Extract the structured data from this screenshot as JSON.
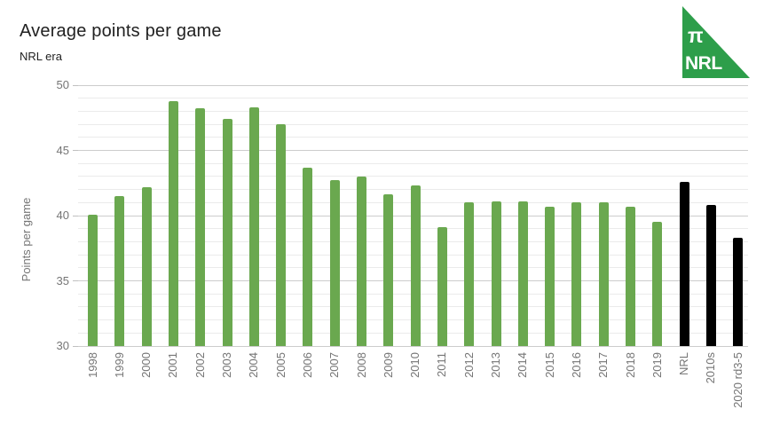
{
  "header": {
    "title": "Average points per game",
    "subtitle": "NRL era"
  },
  "logo": {
    "symbol": "π",
    "text": "NRL",
    "color": "#2d9e4a",
    "text_color": "#ffffff"
  },
  "chart_data": {
    "type": "bar",
    "title": "Average points per game",
    "subtitle": "NRL era",
    "xlabel": "",
    "ylabel": "Points per game",
    "ylim": [
      30,
      50
    ],
    "yticks": [
      30,
      35,
      40,
      45,
      50
    ],
    "major_tick_step": 5,
    "minor_tick_step": 1,
    "grid": true,
    "legend": "none",
    "categories": [
      "1998",
      "1999",
      "2000",
      "2001",
      "2002",
      "2003",
      "2004",
      "2005",
      "2006",
      "2007",
      "2008",
      "2009",
      "2010",
      "2011",
      "2012",
      "2013",
      "2014",
      "2015",
      "2016",
      "2017",
      "2018",
      "2019",
      "NRL",
      "2010s",
      "2020 rd3-5"
    ],
    "values": [
      40.1,
      41.5,
      42.2,
      48.8,
      48.2,
      47.4,
      48.3,
      47.0,
      43.7,
      42.7,
      43.0,
      41.6,
      42.3,
      39.1,
      41.0,
      41.1,
      41.1,
      40.7,
      41.0,
      41.0,
      40.7,
      39.5,
      42.6,
      40.8,
      38.3
    ],
    "bar_color_default": "#6aa84f",
    "bar_color_summary": "#000000",
    "summary_categories": [
      "NRL",
      "2010s",
      "2020 rd3-5"
    ],
    "gridline_color_minor": "#ebebeb",
    "gridline_color_major": "#cccccc",
    "axis_text_color": "#757575"
  }
}
